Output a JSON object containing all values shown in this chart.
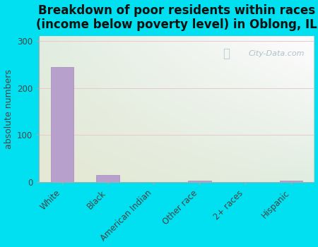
{
  "title": "Breakdown of poor residents within races\n(income below poverty level) in Oblong, IL",
  "ylabel": "absolute numbers",
  "categories": [
    "White",
    "Black",
    "American Indian",
    "Other race",
    "2+ races",
    "Hispanic"
  ],
  "values": [
    245,
    15,
    0,
    3,
    0,
    3
  ],
  "bar_color": "#b8a0cc",
  "bar_edgecolor": "#a888be",
  "ylim": [
    0,
    310
  ],
  "yticks": [
    0,
    100,
    200,
    300
  ],
  "background_outer": "#00e0f0",
  "watermark": "City-Data.com",
  "title_fontsize": 12,
  "ylabel_fontsize": 9,
  "tick_fontsize": 8.5,
  "grad_top_left": "#e0f5e8",
  "grad_top_right": "#f0fffe",
  "grad_bottom_left": "#c8ecd8",
  "grad_bottom_right": "#e8faf0"
}
